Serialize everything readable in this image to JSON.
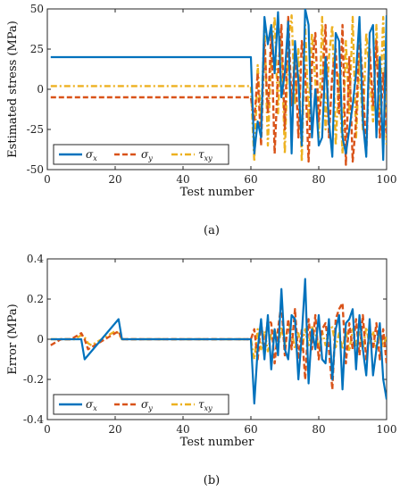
{
  "colors": {
    "sx": "#0072BD",
    "sy": "#D95319",
    "txy": "#EDB120"
  },
  "chart_data": [
    {
      "type": "line",
      "caption": "(a)",
      "xlabel": "Test number",
      "ylabel": "Estimated stress (MPa)",
      "xlim": [
        0,
        100
      ],
      "ylim": [
        -50,
        50
      ],
      "xticks": [
        0,
        20,
        40,
        60,
        80,
        100
      ],
      "yticks": [
        -50,
        -25,
        0,
        25,
        50
      ],
      "grid": false,
      "legend": "bottom-left",
      "x": [
        1,
        2,
        3,
        4,
        5,
        6,
        7,
        8,
        9,
        10,
        11,
        12,
        13,
        14,
        15,
        16,
        17,
        18,
        19,
        20,
        21,
        22,
        23,
        24,
        25,
        26,
        27,
        28,
        29,
        30,
        31,
        32,
        33,
        34,
        35,
        36,
        37,
        38,
        39,
        40,
        41,
        42,
        43,
        44,
        45,
        46,
        47,
        48,
        49,
        50,
        51,
        52,
        53,
        54,
        55,
        56,
        57,
        58,
        59,
        60,
        61,
        62,
        63,
        64,
        65,
        66,
        67,
        68,
        69,
        70,
        71,
        72,
        73,
        74,
        75,
        76,
        77,
        78,
        79,
        80,
        81,
        82,
        83,
        84,
        85,
        86,
        87,
        88,
        89,
        90,
        91,
        92,
        93,
        94,
        95,
        96,
        97,
        98,
        99,
        100
      ],
      "series": [
        {
          "name": "σ",
          "sub": "x",
          "color_key": "sx",
          "dash": "solid",
          "values": [
            20,
            20,
            20,
            20,
            20,
            20,
            20,
            20,
            20,
            20,
            20,
            20,
            20,
            20,
            20,
            20,
            20,
            20,
            20,
            20,
            20,
            20,
            20,
            20,
            20,
            20,
            20,
            20,
            20,
            20,
            20,
            20,
            20,
            20,
            20,
            20,
            20,
            20,
            20,
            20,
            20,
            20,
            20,
            20,
            20,
            20,
            20,
            20,
            20,
            20,
            20,
            20,
            20,
            20,
            20,
            20,
            20,
            20,
            20,
            20,
            -40,
            -20,
            -30,
            45,
            28,
            40,
            10,
            48,
            -5,
            10,
            42,
            -40,
            30,
            5,
            -35,
            50,
            40,
            -30,
            0,
            -35,
            -30,
            20,
            -20,
            -42,
            35,
            30,
            -30,
            -40,
            -25,
            -10,
            10,
            45,
            -20,
            -42,
            35,
            40,
            -30,
            20,
            -44,
            46
          ]
        },
        {
          "name": "σ",
          "sub": "y",
          "color_key": "sy",
          "dash": "dash",
          "values": [
            -5,
            -5,
            -5,
            -5,
            -5,
            -5,
            -5,
            -5,
            -5,
            -5,
            -5,
            -5,
            -5,
            -5,
            -5,
            -5,
            -5,
            -5,
            -5,
            -5,
            -5,
            -5,
            -5,
            -5,
            -5,
            -5,
            -5,
            -5,
            -5,
            -5,
            -5,
            -5,
            -5,
            -5,
            -5,
            -5,
            -5,
            -5,
            -5,
            -5,
            -5,
            -5,
            -5,
            -5,
            -5,
            -5,
            -5,
            -5,
            -5,
            -5,
            -5,
            -5,
            -5,
            -5,
            -5,
            -5,
            -5,
            -5,
            -5,
            -5,
            -20,
            10,
            -35,
            30,
            -15,
            35,
            -40,
            10,
            40,
            -25,
            45,
            -10,
            20,
            -30,
            30,
            10,
            -45,
            15,
            35,
            -20,
            0,
            40,
            -30,
            10,
            25,
            -15,
            40,
            -47,
            20,
            -45,
            -20,
            35,
            5,
            -40,
            25,
            -10,
            30,
            -30,
            10,
            -30
          ]
        },
        {
          "name": "τ",
          "sub": "xy",
          "color_key": "txy",
          "dash": "dashdot",
          "values": [
            2,
            2,
            2,
            2,
            2,
            2,
            2,
            2,
            2,
            2,
            2,
            2,
            2,
            2,
            2,
            2,
            2,
            2,
            2,
            2,
            2,
            2,
            2,
            2,
            2,
            2,
            2,
            2,
            2,
            2,
            2,
            2,
            2,
            2,
            2,
            2,
            2,
            2,
            2,
            2,
            2,
            2,
            2,
            2,
            2,
            2,
            2,
            2,
            2,
            2,
            2,
            2,
            2,
            2,
            2,
            2,
            2,
            2,
            2,
            2,
            -45,
            15,
            -20,
            40,
            -35,
            20,
            45,
            -15,
            30,
            -40,
            30,
            46,
            -10,
            25,
            -45,
            40,
            -20,
            35,
            5,
            -30,
            45,
            -25,
            20,
            40,
            -35,
            10,
            -40,
            30,
            -15,
            45,
            -30,
            20,
            -25,
            35,
            10,
            -20,
            40,
            -15,
            45,
            -35
          ]
        }
      ]
    },
    {
      "type": "line",
      "caption": "(b)",
      "xlabel": "Test number",
      "ylabel": "Error (MPa)",
      "xlim": [
        0,
        100
      ],
      "ylim": [
        -0.4,
        0.4
      ],
      "xticks": [
        0,
        20,
        40,
        60,
        80,
        100
      ],
      "yticks": [
        -0.4,
        -0.2,
        0,
        0.2,
        0.4
      ],
      "ytick_labels": [
        "-0.4",
        "-0.2",
        "0",
        "0.2",
        "0.4"
      ],
      "grid": false,
      "legend": "bottom-left",
      "x": [
        1,
        2,
        3,
        4,
        5,
        6,
        7,
        8,
        9,
        10,
        11,
        12,
        13,
        14,
        15,
        16,
        17,
        18,
        19,
        20,
        21,
        22,
        23,
        24,
        25,
        26,
        27,
        28,
        29,
        30,
        31,
        32,
        33,
        34,
        35,
        36,
        37,
        38,
        39,
        40,
        41,
        42,
        43,
        44,
        45,
        46,
        47,
        48,
        49,
        50,
        51,
        52,
        53,
        54,
        55,
        56,
        57,
        58,
        59,
        60,
        61,
        62,
        63,
        64,
        65,
        66,
        67,
        68,
        69,
        70,
        71,
        72,
        73,
        74,
        75,
        76,
        77,
        78,
        79,
        80,
        81,
        82,
        83,
        84,
        85,
        86,
        87,
        88,
        89,
        90,
        91,
        92,
        93,
        94,
        95,
        96,
        97,
        98,
        99,
        100
      ],
      "series": [
        {
          "name": "σ",
          "sub": "x",
          "color_key": "sx",
          "dash": "solid",
          "values": [
            0,
            0,
            0,
            0,
            0,
            0,
            0,
            0,
            0,
            0,
            -0.1,
            -0.08,
            -0.06,
            -0.04,
            -0.02,
            0,
            0.02,
            0.04,
            0.06,
            0.08,
            0.1,
            0,
            0,
            0,
            0,
            0,
            0,
            0,
            0,
            0,
            0,
            0,
            0,
            0,
            0,
            0,
            0,
            0,
            0,
            0,
            0,
            0,
            0,
            0,
            0,
            0,
            0,
            0,
            0,
            0,
            0,
            0,
            0,
            0,
            0,
            0,
            0,
            0,
            0,
            0,
            -0.32,
            -0.05,
            0.1,
            -0.1,
            0.12,
            -0.15,
            0.05,
            -0.08,
            0.25,
            -0.05,
            -0.1,
            0.12,
            0.1,
            -0.2,
            0.02,
            0.3,
            -0.22,
            0.05,
            -0.05,
            0.12,
            -0.1,
            -0.12,
            0.1,
            -0.2,
            0.05,
            0.12,
            -0.25,
            0.08,
            0.1,
            0.15,
            -0.15,
            0.12,
            -0.05,
            -0.18,
            0.1,
            -0.18,
            -0.05,
            0.08,
            -0.2,
            -0.3
          ]
        },
        {
          "name": "σ",
          "sub": "y",
          "color_key": "sy",
          "dash": "dash",
          "values": [
            -0.03,
            -0.02,
            -0.01,
            0,
            0,
            0,
            0,
            0.01,
            0.02,
            0.03,
            0,
            -0.05,
            -0.04,
            -0.03,
            -0.02,
            -0.01,
            0,
            0.01,
            0.02,
            0.03,
            0.04,
            0,
            0,
            0,
            0,
            0,
            0,
            0,
            0,
            0,
            0,
            0,
            0,
            0,
            0,
            0,
            0,
            0,
            0,
            0,
            0,
            0,
            0,
            0,
            0,
            0,
            0,
            0,
            0,
            0,
            0,
            0,
            0,
            0,
            0,
            0,
            0,
            0,
            0,
            0,
            0.05,
            -0.1,
            0.08,
            -0.05,
            0.1,
            0.08,
            -0.12,
            0.05,
            0.18,
            -0.08,
            0.1,
            -0.05,
            0.15,
            -0.1,
            0.05,
            -0.2,
            0.1,
            -0.05,
            0.12,
            -0.1,
            0.05,
            0.08,
            -0.05,
            -0.25,
            0.1,
            0.15,
            0.18,
            -0.12,
            0.08,
            -0.05,
            0.1,
            -0.08,
            0.12,
            -0.1,
            0.05,
            -0.05,
            0.08,
            -0.1,
            0.05,
            -0.12
          ]
        },
        {
          "name": "τ",
          "sub": "xy",
          "color_key": "txy",
          "dash": "dashdot",
          "values": [
            0,
            0,
            0,
            0,
            0,
            0,
            0,
            0,
            0.01,
            0.02,
            0.01,
            -0.02,
            -0.03,
            -0.02,
            -0.01,
            0,
            0.01,
            0.02,
            0.03,
            0.04,
            0.03,
            0,
            0,
            0,
            0,
            0,
            0,
            0,
            0,
            0,
            0,
            0,
            0,
            0,
            0,
            0,
            0,
            0,
            0,
            0,
            0,
            0,
            0,
            0,
            0,
            0,
            0,
            0,
            0,
            0,
            0,
            0,
            0,
            0,
            0,
            0,
            0,
            0,
            0,
            0,
            -0.1,
            0.05,
            -0.05,
            0.04,
            -0.06,
            0.03,
            0.05,
            -0.04,
            0.06,
            -0.03,
            0.08,
            0.04,
            -0.05,
            0.03,
            -0.06,
            0.05,
            -0.04,
            0.06,
            0.03,
            -0.05,
            0.04,
            -0.03,
            0.05,
            0.06,
            -0.04,
            0.03,
            -0.05,
            0.04,
            -0.06,
            0.05,
            -0.03,
            0.04,
            -0.05,
            0.06,
            -0.03,
            0.04,
            -0.05,
            0.03,
            -0.04,
            0.02
          ]
        }
      ]
    }
  ]
}
